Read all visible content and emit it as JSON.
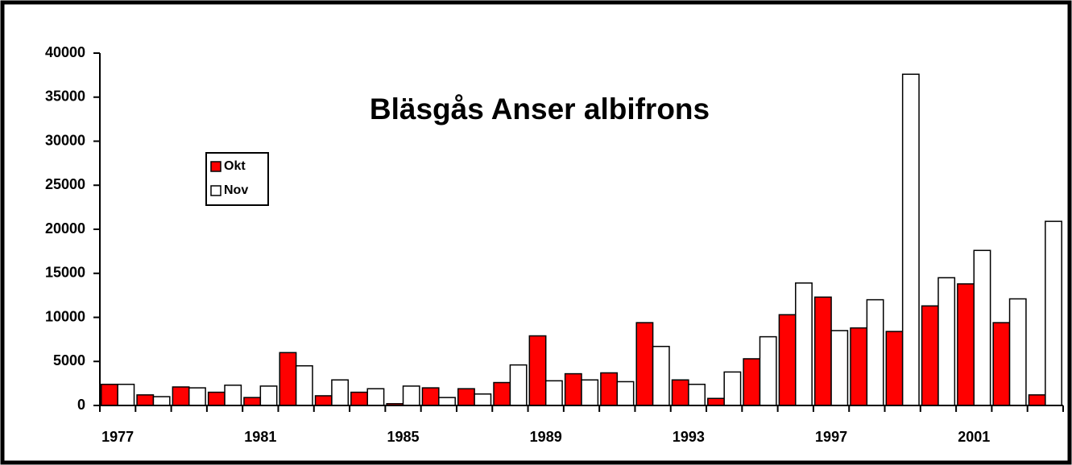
{
  "chart_data": {
    "type": "bar",
    "title": "Bläsgås Anser albifrons",
    "categories": [
      "1977",
      null,
      null,
      null,
      "1981",
      null,
      null,
      null,
      "1985",
      null,
      null,
      null,
      "1989",
      null,
      null,
      null,
      "1993",
      null,
      null,
      null,
      "1997",
      null,
      null,
      null,
      "2001",
      null,
      null
    ],
    "series": [
      {
        "name": "Okt",
        "color": "#ff0000",
        "values": [
          2400,
          1200,
          2100,
          1500,
          900,
          6000,
          1100,
          1500,
          200,
          2000,
          1900,
          2600,
          7900,
          3600,
          3700,
          9400,
          2900,
          800,
          5300,
          10300,
          12300,
          8800,
          8400,
          11300,
          13800,
          9400,
          1200
        ]
      },
      {
        "name": "Nov",
        "color": "#ffffff",
        "values": [
          2400,
          1000,
          2000,
          2300,
          2200,
          4500,
          2900,
          1900,
          2200,
          900,
          1300,
          4600,
          2800,
          2900,
          2700,
          6700,
          2400,
          3800,
          7800,
          13900,
          8500,
          12000,
          37600,
          14500,
          17600,
          12100,
          20900
        ]
      }
    ],
    "ylim": [
      0,
      40000
    ],
    "yticks": [
      0,
      5000,
      10000,
      15000,
      20000,
      25000,
      30000,
      35000,
      40000
    ],
    "grid": false,
    "legend": "upper left"
  }
}
